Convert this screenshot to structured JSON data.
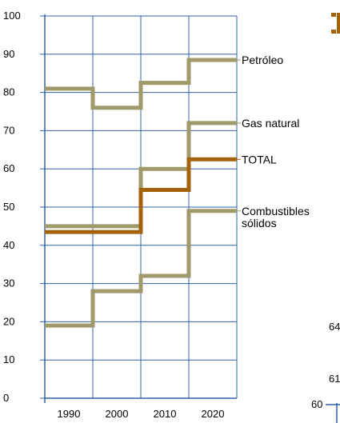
{
  "chart_data": {
    "type": "line",
    "step": true,
    "x_categories": [
      "1990",
      "2000",
      "2010",
      "2020"
    ],
    "x_periods": [
      [
        1985,
        1995
      ],
      [
        1995,
        2005
      ],
      [
        2005,
        2015
      ],
      [
        2015,
        2025
      ]
    ],
    "ylim": [
      0,
      100
    ],
    "yticks": [
      0,
      10,
      20,
      30,
      40,
      50,
      60,
      70,
      80,
      90,
      100
    ],
    "grid": true,
    "colors": {
      "axis": "#3060a8",
      "grid": "#3060a8",
      "olive": "#a09a6a",
      "total": "#a3620b"
    },
    "series": [
      {
        "name": "Petróleo",
        "color": "#a09a6a",
        "values": [
          81,
          76,
          82.5,
          88.5
        ]
      },
      {
        "name": "Gas natural",
        "color": "#a09a6a",
        "values": [
          45,
          45,
          60,
          72
        ]
      },
      {
        "name": "TOTAL",
        "color": "#a3620b",
        "values": [
          43.5,
          43.5,
          54.5,
          62.5
        ]
      },
      {
        "name_lines": [
          "Combustibles",
          "sólidos"
        ],
        "color": "#a09a6a",
        "values": [
          19,
          28,
          32,
          49
        ]
      }
    ],
    "fragments": [
      "64",
      "61",
      "60"
    ]
  }
}
